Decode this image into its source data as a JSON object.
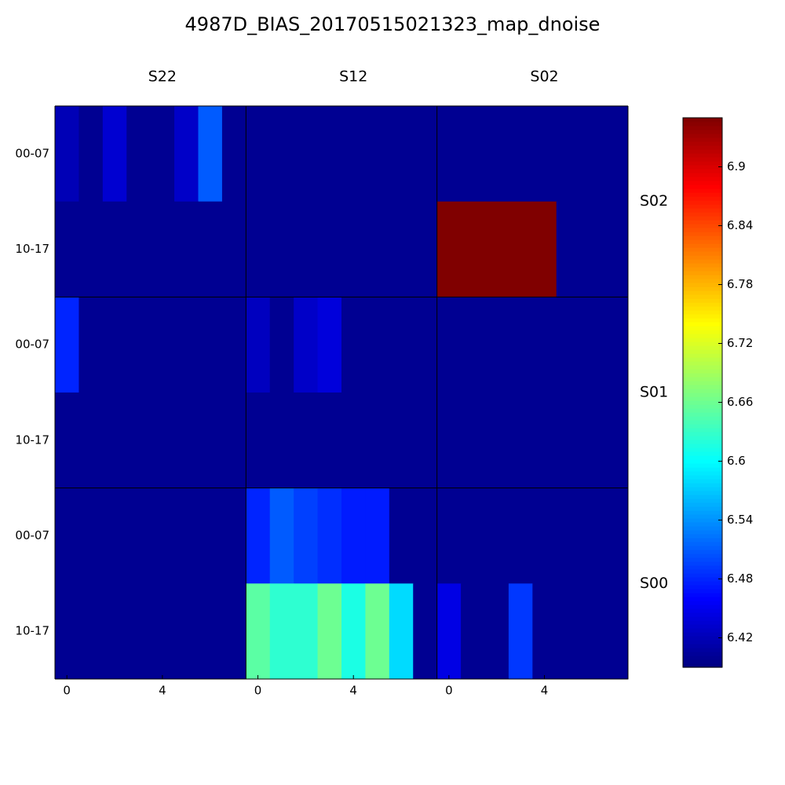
{
  "chart_data": {
    "type": "heatmap",
    "title": "4987D_BIAS_20170515021323_map_dnoise",
    "panels_x": [
      "S22",
      "S12",
      "S02"
    ],
    "panels_y": [
      "S02",
      "S01",
      "S00"
    ],
    "row_labels": [
      "00-07",
      "10-17"
    ],
    "xticks": [
      0,
      4
    ],
    "colormap": "jet",
    "clim": [
      6.39,
      6.95
    ],
    "cticks": [
      6.42,
      6.48,
      6.54,
      6.6,
      6.66,
      6.72,
      6.78,
      6.84,
      6.9
    ],
    "values": [
      [
        6.42,
        6.4,
        6.435,
        6.4,
        6.4,
        6.43,
        6.51,
        6.4,
        6.4,
        6.4,
        6.4,
        6.4,
        6.4,
        6.4,
        6.4,
        6.4,
        6.4,
        6.4,
        6.4,
        6.4,
        6.4,
        6.4,
        6.4,
        6.4
      ],
      [
        6.4,
        6.4,
        6.4,
        6.4,
        6.4,
        6.4,
        6.4,
        6.4,
        6.4,
        6.4,
        6.4,
        6.4,
        6.4,
        6.4,
        6.4,
        6.4,
        6.95,
        6.95,
        6.95,
        6.95,
        6.95,
        6.4,
        6.4,
        6.4
      ],
      [
        6.48,
        6.4,
        6.4,
        6.4,
        6.4,
        6.4,
        6.4,
        6.4,
        6.425,
        6.4,
        6.43,
        6.44,
        6.4,
        6.4,
        6.4,
        6.4,
        6.4,
        6.4,
        6.4,
        6.4,
        6.4,
        6.4,
        6.4,
        6.4
      ],
      [
        6.4,
        6.4,
        6.4,
        6.4,
        6.4,
        6.4,
        6.4,
        6.4,
        6.4,
        6.4,
        6.4,
        6.4,
        6.4,
        6.4,
        6.4,
        6.4,
        6.4,
        6.4,
        6.4,
        6.4,
        6.4,
        6.4,
        6.4,
        6.4
      ],
      [
        6.4,
        6.4,
        6.4,
        6.4,
        6.4,
        6.4,
        6.4,
        6.4,
        6.48,
        6.51,
        6.495,
        6.485,
        6.475,
        6.475,
        6.4,
        6.4,
        6.4,
        6.4,
        6.4,
        6.4,
        6.4,
        6.4,
        6.4,
        6.4
      ],
      [
        6.4,
        6.4,
        6.4,
        6.4,
        6.4,
        6.4,
        6.4,
        6.4,
        6.65,
        6.625,
        6.625,
        6.66,
        6.615,
        6.66,
        6.58,
        6.4,
        6.445,
        6.4,
        6.4,
        6.49,
        6.4,
        6.4,
        6.4,
        6.4
      ]
    ]
  }
}
